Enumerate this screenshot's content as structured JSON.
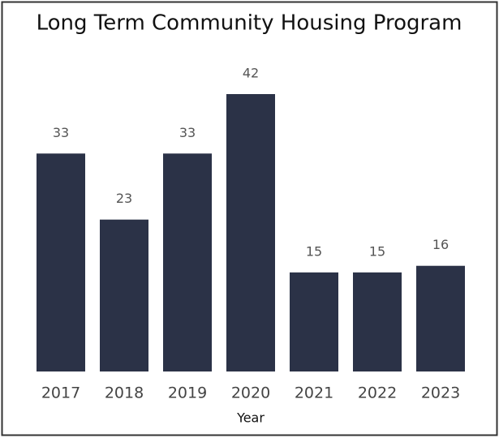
{
  "chart_data": {
    "type": "bar",
    "title": "Long Term Community Housing Program",
    "x_label": "Year",
    "categories": [
      "2017",
      "2018",
      "2019",
      "2020",
      "2021",
      "2022",
      "2023"
    ],
    "values": [
      33,
      23,
      33,
      42,
      15,
      15,
      16
    ],
    "color": "#2b3247"
  }
}
